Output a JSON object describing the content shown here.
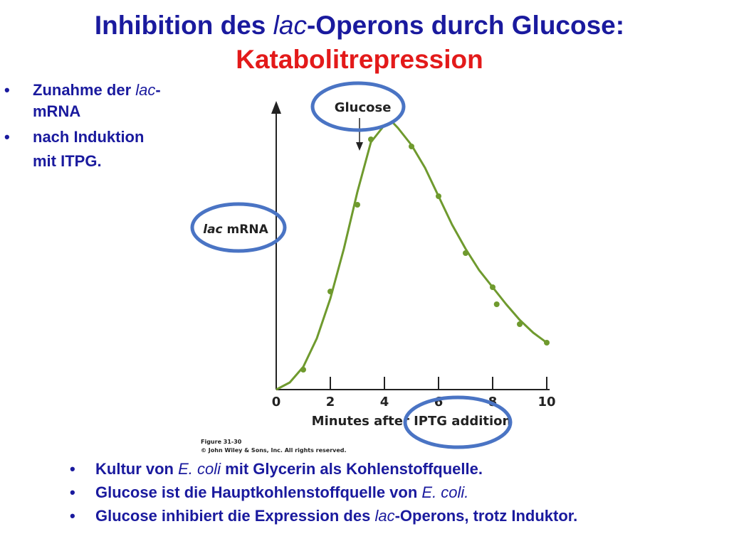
{
  "slide": {
    "title": [
      "Inhibition des ",
      "lac",
      "-Operons durch Glucose:"
    ],
    "subtitle": "Katabolitrepression",
    "side_bullets": [
      [
        "Zunahme der ",
        "lac",
        "-",
        "mRNA"
      ],
      [
        "nach Induktion",
        "mit ITPG."
      ]
    ],
    "bottom_bullets": [
      [
        "Kultur von ",
        "E. coli",
        " mit Glycerin als Kohlenstoffquelle."
      ],
      [
        "Glucose ist die Hauptkohlenstoffquelle von ",
        "E. coli."
      ],
      [
        "Glucose inhibiert die Expression des ",
        "lac",
        "-Operons, trotz Induktor."
      ]
    ],
    "bullet": "•"
  },
  "chart_data": {
    "type": "scatter",
    "x_label": "Minutes after IPTG addition",
    "y_label": [
      "lac",
      " mRNA"
    ],
    "caption": [
      "Figure 31-30",
      "© John Wiley & Sons, Inc. All rights reserved."
    ],
    "annotations": [
      {
        "text": "Glucose",
        "x": 3.2
      }
    ],
    "xlim": [
      0,
      10
    ],
    "xticks": [
      0,
      2,
      4,
      6,
      8,
      10
    ],
    "ylim": [
      0,
      100
    ],
    "series": [
      {
        "type": "scatter",
        "color": "#6f9a2e",
        "x": [
          1,
          2,
          3,
          3.5,
          5,
          6,
          7,
          8,
          8.15,
          9,
          10
        ],
        "values": [
          7,
          34.5,
          65,
          88,
          85.5,
          68,
          48,
          36,
          30,
          23,
          16.5
        ]
      },
      {
        "type": "line",
        "color": "#6f9a2e",
        "x": [
          0,
          0.5,
          1,
          1.5,
          2,
          2.5,
          3,
          3.5,
          4,
          4.3,
          4.5,
          5,
          5.5,
          6,
          6.5,
          7,
          7.5,
          8,
          8.5,
          9,
          9.5,
          10
        ],
        "values": [
          0,
          2.5,
          8,
          18,
          32,
          49.5,
          69.5,
          87,
          93,
          94,
          92,
          86,
          78,
          68,
          58,
          49.5,
          42,
          36,
          30,
          24.5,
          20,
          16.5
        ]
      }
    ]
  }
}
